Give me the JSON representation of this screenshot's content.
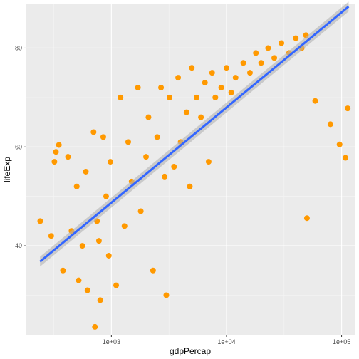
{
  "chart_data": {
    "type": "scatter",
    "title": "",
    "xlabel": "gdpPercap",
    "ylabel": "lifeExp",
    "x_scale": "log10",
    "xlim": [
      180,
      130000
    ],
    "ylim": [
      22,
      89
    ],
    "x_ticks": [
      1000,
      10000,
      100000
    ],
    "x_tick_labels": [
      "1e+03",
      "1e+04",
      "1e+05"
    ],
    "y_ticks": [
      40,
      60,
      80
    ],
    "y_tick_labels": [
      "40",
      "60",
      "80"
    ],
    "grid": true,
    "legend": "none",
    "colors": {
      "panel": "#EBEBEB",
      "grid_major": "#FFFFFF",
      "points": "#FF9900",
      "fit_line": "#3366FF",
      "confidence_band": "#B3B3B3"
    },
    "fit_line": {
      "method": "lm",
      "x": [
        240,
        115000
      ],
      "y": [
        36.8,
        88.4
      ],
      "band_halfwidth": 1.0
    },
    "series": [
      {
        "values": [
          [
            241,
            45
          ],
          [
            300,
            42
          ],
          [
            320,
            57
          ],
          [
            330,
            59
          ],
          [
            350,
            60.4
          ],
          [
            380,
            35
          ],
          [
            420,
            58
          ],
          [
            450,
            43
          ],
          [
            500,
            52
          ],
          [
            520,
            33
          ],
          [
            560,
            40
          ],
          [
            600,
            55
          ],
          [
            620,
            31
          ],
          [
            700,
            63
          ],
          [
            720,
            23.6
          ],
          [
            750,
            45
          ],
          [
            780,
            41
          ],
          [
            800,
            29
          ],
          [
            850,
            62
          ],
          [
            900,
            50
          ],
          [
            950,
            38
          ],
          [
            980,
            57
          ],
          [
            1100,
            32
          ],
          [
            1200,
            70
          ],
          [
            1300,
            44
          ],
          [
            1400,
            61
          ],
          [
            1500,
            53
          ],
          [
            1700,
            72
          ],
          [
            1800,
            47
          ],
          [
            2000,
            58
          ],
          [
            2100,
            66
          ],
          [
            2300,
            35
          ],
          [
            2500,
            62
          ],
          [
            2700,
            72
          ],
          [
            2900,
            54
          ],
          [
            3000,
            30
          ],
          [
            3200,
            70
          ],
          [
            3500,
            56
          ],
          [
            3800,
            74
          ],
          [
            4000,
            61
          ],
          [
            4500,
            67
          ],
          [
            4800,
            52
          ],
          [
            5000,
            76
          ],
          [
            5500,
            70
          ],
          [
            6000,
            66
          ],
          [
            6500,
            73
          ],
          [
            7000,
            57
          ],
          [
            7500,
            75
          ],
          [
            8000,
            70
          ],
          [
            9000,
            72
          ],
          [
            10000,
            76
          ],
          [
            11000,
            71
          ],
          [
            12000,
            74
          ],
          [
            14000,
            77
          ],
          [
            16000,
            75
          ],
          [
            18000,
            79
          ],
          [
            20000,
            77
          ],
          [
            23000,
            80
          ],
          [
            26000,
            78
          ],
          [
            30000,
            81
          ],
          [
            35000,
            79
          ],
          [
            40000,
            82
          ],
          [
            45000,
            80
          ],
          [
            49000,
            82.6
          ],
          [
            50000,
            45.6
          ],
          [
            59000,
            69.3
          ],
          [
            80000,
            64.6
          ],
          [
            96000,
            60.5
          ],
          [
            108000,
            57.8
          ],
          [
            113000,
            67.8
          ]
        ]
      }
    ]
  }
}
